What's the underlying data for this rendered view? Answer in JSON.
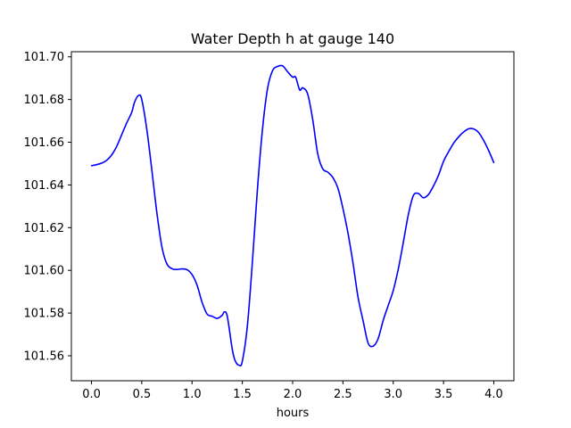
{
  "chart_data": {
    "type": "line",
    "title": "Water Depth h at gauge 140",
    "xlabel": "hours",
    "ylabel": "",
    "xlim": [
      -0.2,
      4.2
    ],
    "ylim": [
      101.5483,
      101.7024
    ],
    "xticks": [
      0.0,
      0.5,
      1.0,
      1.5,
      2.0,
      2.5,
      3.0,
      3.5,
      4.0
    ],
    "xtick_labels": [
      "0.0",
      "0.5",
      "1.0",
      "1.5",
      "2.0",
      "2.5",
      "3.0",
      "3.5",
      "4.0"
    ],
    "yticks": [
      101.56,
      101.58,
      101.6,
      101.62,
      101.64,
      101.66,
      101.68,
      101.7
    ],
    "ytick_labels": [
      "101.56",
      "101.58",
      "101.60",
      "101.62",
      "101.64",
      "101.66",
      "101.68",
      "101.70"
    ],
    "grid": false,
    "legend": "none",
    "series": [
      {
        "color": "#0000ff",
        "x": [
          0.0,
          0.05,
          0.1,
          0.15,
          0.2,
          0.25,
          0.3,
          0.35,
          0.4,
          0.43,
          0.47,
          0.5,
          0.55,
          0.6,
          0.65,
          0.7,
          0.75,
          0.8,
          0.85,
          0.9,
          0.95,
          1.0,
          1.05,
          1.1,
          1.15,
          1.2,
          1.25,
          1.3,
          1.32,
          1.35,
          1.4,
          1.43,
          1.47,
          1.5,
          1.55,
          1.6,
          1.65,
          1.7,
          1.75,
          1.8,
          1.85,
          1.9,
          1.95,
          2.0,
          2.03,
          2.07,
          2.1,
          2.15,
          2.2,
          2.25,
          2.3,
          2.35,
          2.4,
          2.45,
          2.5,
          2.55,
          2.6,
          2.65,
          2.7,
          2.75,
          2.8,
          2.85,
          2.9,
          2.95,
          3.0,
          3.05,
          3.1,
          3.15,
          3.2,
          3.25,
          3.3,
          3.35,
          3.4,
          3.45,
          3.5,
          3.55,
          3.6,
          3.65,
          3.7,
          3.75,
          3.8,
          3.85,
          3.9,
          3.95,
          4.0
        ],
        "y": [
          101.649,
          101.6495,
          101.6502,
          101.6515,
          101.654,
          101.658,
          101.6635,
          101.669,
          101.674,
          101.679,
          101.682,
          101.68,
          101.666,
          101.647,
          101.627,
          101.611,
          101.603,
          101.6008,
          101.6004,
          101.6007,
          101.6003,
          101.598,
          101.593,
          101.585,
          101.5795,
          101.5785,
          101.5775,
          101.579,
          101.5805,
          101.5785,
          101.563,
          101.5575,
          101.5555,
          101.5575,
          101.574,
          101.604,
          101.638,
          101.666,
          101.685,
          101.6935,
          101.6955,
          101.6958,
          101.693,
          101.6905,
          101.6905,
          101.6845,
          101.6855,
          101.6825,
          101.6705,
          101.6545,
          101.6475,
          101.646,
          101.6435,
          101.6385,
          101.629,
          101.6175,
          101.6035,
          101.5875,
          101.5765,
          101.566,
          101.5645,
          101.568,
          101.5765,
          101.5835,
          101.5905,
          101.6005,
          101.613,
          101.626,
          101.635,
          101.636,
          101.634,
          101.6355,
          101.6395,
          101.6445,
          101.651,
          101.6555,
          101.6595,
          101.6625,
          101.6648,
          101.6663,
          101.6662,
          101.6645,
          101.6608,
          101.656,
          101.6505
        ]
      }
    ]
  }
}
